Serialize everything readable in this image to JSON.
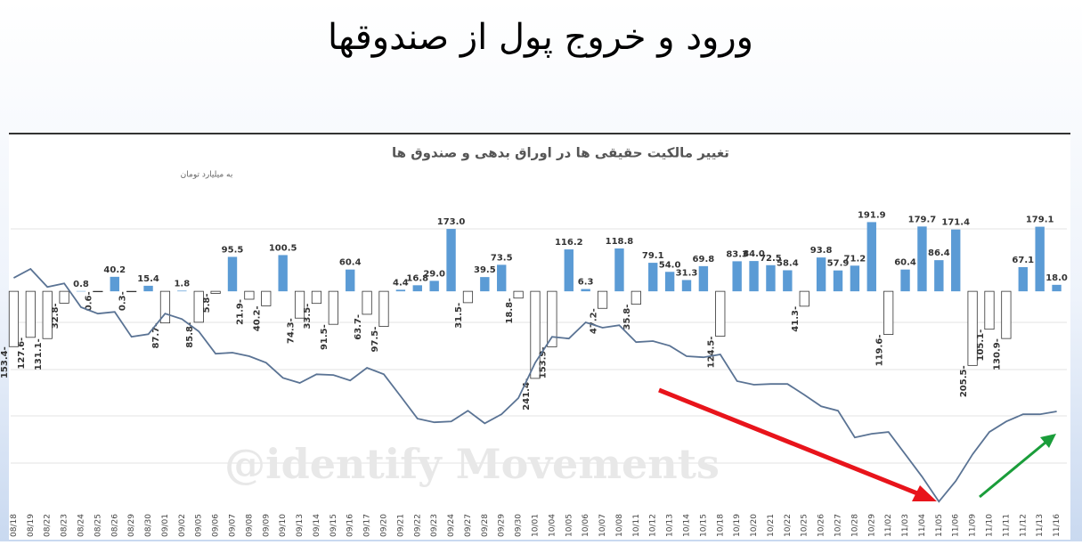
{
  "slide_title": "ورود و خروج پول از صندوقها",
  "watermark": "@identify Movements",
  "chart_data": {
    "type": "bar",
    "title": "تغییر مالکیت حقیقی ها در اوراق بدهی و صندوق ها",
    "subtitle": "به میلیارد تومان",
    "categories": [
      "08/18",
      "08/19",
      "08/22",
      "08/23",
      "08/24",
      "08/25",
      "08/26",
      "08/29",
      "08/30",
      "09/01",
      "09/02",
      "09/05",
      "09/06",
      "09/07",
      "09/08",
      "09/09",
      "09/10",
      "09/13",
      "09/14",
      "09/15",
      "09/16",
      "09/17",
      "09/20",
      "09/21",
      "09/22",
      "09/23",
      "09/24",
      "09/27",
      "09/28",
      "09/29",
      "09/30",
      "10/01",
      "10/04",
      "10/05",
      "10/06",
      "10/07",
      "10/08",
      "10/11",
      "10/12",
      "10/13",
      "10/14",
      "10/15",
      "10/18",
      "10/19",
      "10/20",
      "10/21",
      "10/22",
      "10/25",
      "10/26",
      "10/27",
      "10/28",
      "10/29",
      "11/02",
      "11/03",
      "11/04",
      "11/05",
      "11/06",
      "11/09",
      "11/10",
      "11/11",
      "11/12",
      "11/13",
      "11/16"
    ],
    "ylim": [
      -612,
      425
    ],
    "series": [
      {
        "type": "bar",
        "color": "#5b9bd5",
        "values": [
          -153.4,
          -127.6,
          -131.1,
          -32.8,
          0.8,
          -0.6,
          40.2,
          -0.3,
          15.4,
          -87.7,
          1.8,
          -85.8,
          -5.8,
          95.5,
          -21.9,
          -40.2,
          100.5,
          -74.3,
          -33.5,
          -91.5,
          60.4,
          -63.7,
          -97.5,
          4.4,
          16.8,
          29.0,
          173.0,
          -31.5,
          39.5,
          73.5,
          -18.8,
          -241.4,
          -153.9,
          116.2,
          6.3,
          -47.2,
          118.8,
          -35.8,
          79.1,
          54.0,
          31.3,
          69.8,
          -124.5,
          83.3,
          84.0,
          72.5,
          58.4,
          -41.3,
          93.8,
          57.9,
          71.2,
          191.9,
          -119.6,
          60.4,
          179.7,
          86.4,
          171.4,
          -205.5,
          -105.1,
          -130.9,
          67.1,
          179.1,
          18.0
        ],
        "value_labels": [
          "153.4-",
          "127.6-",
          "131.1-",
          "32.8-",
          "0.8",
          "0.6-",
          "40.2",
          "0.3-",
          "15.4",
          "87.7-",
          "1.8",
          "85.8-",
          "5.8-",
          "95.5",
          "21.9-",
          "40.2-",
          "100.5",
          "74.3-",
          "33.5-",
          "91.5-",
          "60.4",
          "63.7-",
          "97.5-",
          "4.4",
          "16.8",
          "29.0",
          "173.0",
          "31.5-",
          "39.5",
          "73.5",
          "18.8-",
          "241.4-",
          "153.9-",
          "116.2",
          "6.3",
          "47.2-",
          "118.8",
          "35.8-",
          "79.1",
          "54.0",
          "31.3",
          "69.8",
          "124.5-",
          "83.3",
          "84.0",
          "72.5",
          "58.4",
          "41.3-",
          "93.8",
          "57.9",
          "71.2",
          "191.9",
          "119.6-",
          "60.4",
          "179.7",
          "86.4",
          "171.4",
          "205.5-",
          "105.1-",
          "130.9-",
          "67.1",
          "179.1",
          "18.0"
        ]
      },
      {
        "type": "line",
        "color": "#5a7394",
        "values": [
          37,
          62,
          12,
          22,
          -44,
          -62,
          -57,
          -126,
          -119,
          -62,
          -77,
          -111,
          -173,
          -170,
          -180,
          -198,
          -240,
          -254,
          -230,
          -232,
          -247,
          -212,
          -230,
          -291,
          -353,
          -363,
          -361,
          -331,
          -366,
          -341,
          -296,
          -198,
          -126,
          -131,
          -86,
          -101,
          -94,
          -141,
          -138,
          -151,
          -180,
          -183,
          -175,
          -249,
          -259,
          -257,
          -257,
          -287,
          -319,
          -331,
          -405,
          -395,
          -390,
          -452,
          -514,
          -583,
          -526,
          -452,
          -390,
          -361,
          -341,
          -341,
          -333
        ]
      }
    ]
  }
}
